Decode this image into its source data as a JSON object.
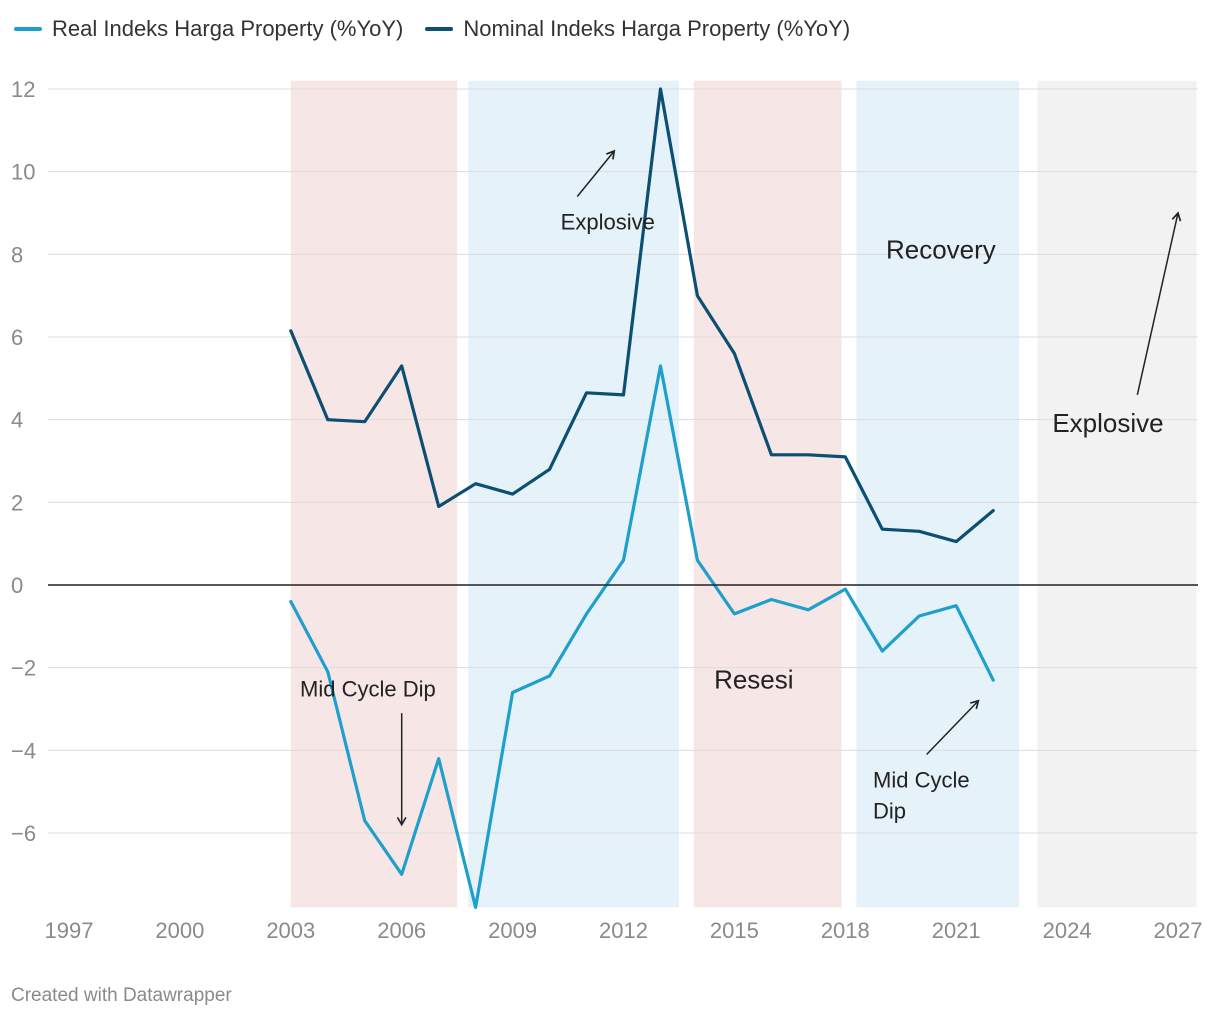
{
  "chart_data": {
    "type": "line",
    "title": "",
    "xlabel": "",
    "ylabel": "",
    "xlim": [
      1996.5,
      2027.5
    ],
    "ylim": [
      -7.8,
      12.2
    ],
    "x_ticks": [
      "1997",
      "2000",
      "2003",
      "2006",
      "2009",
      "2012",
      "2015",
      "2018",
      "2021",
      "2024",
      "2027"
    ],
    "y_ticks": [
      "12",
      "10",
      "8",
      "6",
      "4",
      "2",
      "0",
      "−2",
      "−4",
      "−6"
    ],
    "legend_position": "top-left",
    "grid": true,
    "colors": {
      "real": "#1f9fcc",
      "nominal": "#0c4f73",
      "resesi_band": "#f7e6e6",
      "growth_band": "#e5f2f9",
      "forecast_band": "#f2f2f2"
    },
    "x": [
      2003,
      2004,
      2005,
      2006,
      2007,
      2008,
      2009,
      2010,
      2011,
      2012,
      2013,
      2014,
      2015,
      2016,
      2017,
      2018,
      2019,
      2020,
      2021,
      2022
    ],
    "series": [
      {
        "name": "Real Indeks Harga Property (%YoY)",
        "values": [
          -0.4,
          -2.1,
          -5.7,
          -7.0,
          -4.2,
          -7.8,
          -2.6,
          -2.2,
          -0.7,
          0.6,
          5.3,
          0.6,
          -0.7,
          -0.35,
          -0.6,
          -0.1,
          -1.6,
          -0.75,
          -0.5,
          -2.3
        ]
      },
      {
        "name": "Nominal Indeks Harga Property (%YoY)",
        "values": [
          6.15,
          4.0,
          3.95,
          5.3,
          1.9,
          2.45,
          2.2,
          2.8,
          4.65,
          4.6,
          12.0,
          7.0,
          5.6,
          3.15,
          3.15,
          3.1,
          1.35,
          1.3,
          1.05,
          1.8
        ]
      }
    ],
    "bands": [
      {
        "x0": 2003.0,
        "x1": 2007.5,
        "kind": "resesi"
      },
      {
        "x0": 2007.8,
        "x1": 2013.5,
        "kind": "growth"
      },
      {
        "x0": 2013.9,
        "x1": 2017.9,
        "kind": "resesi"
      },
      {
        "x0": 2018.3,
        "x1": 2022.7,
        "kind": "growth"
      },
      {
        "x0": 2023.2,
        "x1": 2027.5,
        "kind": "forecast"
      }
    ],
    "annotations": [
      {
        "text": "Explosive",
        "x": 2010.3,
        "y": 8.6,
        "size": "normal",
        "arrow": {
          "x0": 2010.75,
          "y0": 9.4,
          "x1": 2011.75,
          "y1": 10.5
        }
      },
      {
        "text": "Recovery",
        "x": 2019.1,
        "y": 7.9,
        "size": "big"
      },
      {
        "text": "Explosive",
        "x": 2023.6,
        "y": 3.7,
        "size": "big",
        "arrow": {
          "x0": 2025.9,
          "y0": 4.6,
          "x1": 2027.0,
          "y1": 9.0
        }
      },
      {
        "text": "Resesi",
        "x": 2014.45,
        "y": -2.5,
        "size": "big"
      },
      {
        "text": "Mid Cycle Dip",
        "x": 2003.25,
        "y": -2.7,
        "size": "normal",
        "arrow": {
          "x0": 2006.0,
          "y0": -3.1,
          "x1": 2006.0,
          "y1": -5.8
        }
      },
      {
        "text": "Mid Cycle Dip",
        "x": 2018.75,
        "y": -4.9,
        "size": "normal",
        "line2": "Dip",
        "arrow": {
          "x0": 2020.2,
          "y0": -4.1,
          "x1": 2021.6,
          "y1": -2.8
        }
      }
    ],
    "footer": "Created with Datawrapper"
  }
}
